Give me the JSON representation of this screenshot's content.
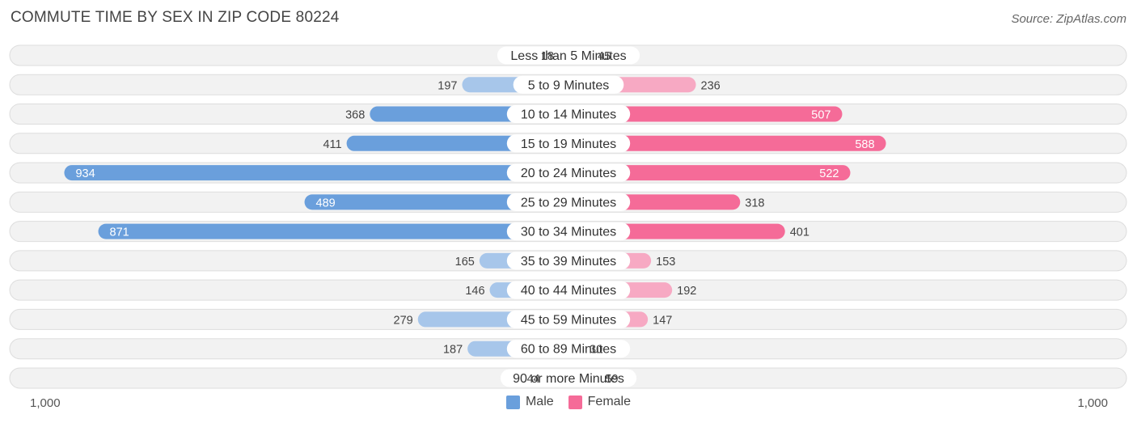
{
  "header": {
    "title": "COMMUTE TIME BY SEX IN ZIP CODE 80224",
    "source": "Source: ZipAtlas.com"
  },
  "axis": {
    "left_label": "1,000",
    "right_label": "1,000"
  },
  "legend": {
    "male_label": "Male",
    "female_label": "Female"
  },
  "colors": {
    "male_strong": "#6a9fdc",
    "male_light": "#a7c6ea",
    "female_strong": "#f56b98",
    "female_light": "#f7a9c3",
    "row_bg": "#f2f2f2",
    "row_border": "#dddddd"
  },
  "chart_data": {
    "type": "bar",
    "orientation": "horizontal-diverging",
    "title": "COMMUTE TIME BY SEX IN ZIP CODE 80224",
    "xlim": [
      -1000,
      1000
    ],
    "legend_position": "bottom-center",
    "categories": [
      "Less than 5 Minutes",
      "5 to 9 Minutes",
      "10 to 14 Minutes",
      "15 to 19 Minutes",
      "20 to 24 Minutes",
      "25 to 29 Minutes",
      "30 to 34 Minutes",
      "35 to 39 Minutes",
      "40 to 44 Minutes",
      "45 to 59 Minutes",
      "60 to 89 Minutes",
      "90 or more Minutes"
    ],
    "series": [
      {
        "name": "Male",
        "values": [
          18,
          197,
          368,
          411,
          934,
          489,
          871,
          165,
          146,
          279,
          187,
          44
        ]
      },
      {
        "name": "Female",
        "values": [
          45,
          236,
          507,
          588,
          522,
          318,
          401,
          153,
          192,
          147,
          30,
          59
        ]
      }
    ]
  }
}
